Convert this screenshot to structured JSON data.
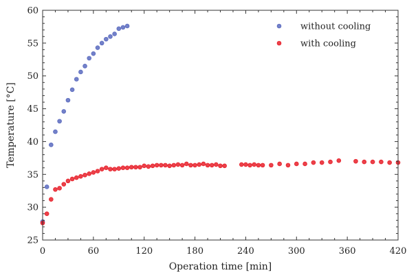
{
  "chart_data": {
    "type": "scatter",
    "xlabel": "Operation time [min]",
    "ylabel": "Temperature [°C]",
    "xlim": [
      0,
      420
    ],
    "ylim": [
      25,
      60
    ],
    "xticks": [
      0,
      60,
      120,
      180,
      240,
      300,
      360,
      420
    ],
    "yticks": [
      25,
      30,
      35,
      40,
      45,
      50,
      55,
      60
    ],
    "grid": false,
    "legend_position": "top-right",
    "series": [
      {
        "name": "without cooling",
        "color": "#5b6bbf",
        "x": [
          0,
          5,
          10,
          15,
          20,
          25,
          30,
          35,
          40,
          45,
          50,
          55,
          60,
          65,
          70,
          75,
          80,
          85,
          90,
          95,
          100
        ],
        "y": [
          27.8,
          33.1,
          39.5,
          41.5,
          43.1,
          44.6,
          46.3,
          47.9,
          49.5,
          50.6,
          51.5,
          52.7,
          53.4,
          54.3,
          55.0,
          55.6,
          56.0,
          56.4,
          57.2,
          57.4,
          57.6
        ]
      },
      {
        "name": "with cooling",
        "color": "#e8202a",
        "x": [
          0,
          5,
          10,
          15,
          20,
          25,
          30,
          35,
          40,
          45,
          50,
          55,
          60,
          65,
          70,
          75,
          80,
          85,
          90,
          95,
          100,
          105,
          110,
          115,
          120,
          125,
          130,
          135,
          140,
          145,
          150,
          155,
          160,
          165,
          170,
          175,
          180,
          185,
          190,
          195,
          200,
          205,
          210,
          215,
          235,
          240,
          245,
          250,
          255,
          260,
          270,
          280,
          290,
          300,
          310,
          320,
          330,
          340,
          350,
          370,
          380,
          390,
          400,
          410,
          420
        ],
        "y": [
          27.6,
          29.0,
          31.2,
          32.7,
          32.9,
          33.5,
          34.0,
          34.3,
          34.5,
          34.7,
          34.9,
          35.1,
          35.3,
          35.5,
          35.8,
          36.0,
          35.8,
          35.8,
          35.9,
          36.0,
          36.0,
          36.1,
          36.1,
          36.1,
          36.3,
          36.2,
          36.3,
          36.4,
          36.4,
          36.4,
          36.3,
          36.4,
          36.5,
          36.4,
          36.6,
          36.4,
          36.4,
          36.5,
          36.6,
          36.4,
          36.4,
          36.5,
          36.3,
          36.3,
          36.5,
          36.5,
          36.4,
          36.5,
          36.4,
          36.4,
          36.4,
          36.6,
          36.4,
          36.6,
          36.6,
          36.8,
          36.8,
          36.9,
          37.1,
          37.0,
          36.9,
          36.9,
          36.9,
          36.8,
          36.8
        ]
      }
    ]
  }
}
